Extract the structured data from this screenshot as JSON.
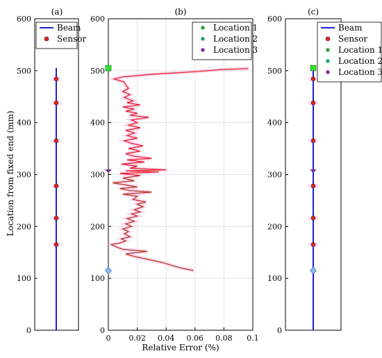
{
  "chart_data": [
    {
      "panel": "(a)",
      "type": "line",
      "title": "(a)",
      "ylabel": "Location from fixed end (mm)",
      "ylim": [
        0,
        600
      ],
      "yticks": [
        0,
        100,
        200,
        300,
        400,
        500,
        600
      ],
      "grid": false,
      "legend_position": "top-right",
      "series": [
        {
          "name": "Beam",
          "color": "#1f1fd8",
          "style": "line",
          "y": [
            0,
            505
          ]
        },
        {
          "name": "Sensor",
          "color": "#d62728",
          "style": "marker",
          "y": [
            484,
            438,
            365,
            278,
            216,
            165
          ]
        }
      ]
    },
    {
      "panel": "(b)",
      "type": "line",
      "title": "(b)",
      "xlabel": "Relative Error (%)",
      "xlim": [
        0,
        0.1
      ],
      "xticks": [
        "0",
        "0.02",
        "0.04",
        "0.06",
        "0.08",
        "0.1"
      ],
      "xtick_values": [
        0,
        0.02,
        0.04,
        0.06,
        0.08,
        0.1
      ],
      "ylim": [
        0,
        600
      ],
      "yticks": [
        0,
        100,
        200,
        300,
        400,
        500,
        600
      ],
      "grid": true,
      "legend_position": "top-right",
      "series": [
        {
          "name": "Relative error",
          "color": "#e8141c",
          "style": "line",
          "points": [
            [
              0.059,
              115
            ],
            [
              0.05,
              120
            ],
            [
              0.045,
              124
            ],
            [
              0.038,
              130
            ],
            [
              0.03,
              135
            ],
            [
              0.025,
              138
            ],
            [
              0.018,
              142
            ],
            [
              0.012,
              147
            ],
            [
              0.02,
              150
            ],
            [
              0.027,
              152
            ],
            [
              0.018,
              154
            ],
            [
              0.01,
              156
            ],
            [
              0.006,
              160
            ],
            [
              0.002,
              165
            ],
            [
              0.008,
              168
            ],
            [
              0.012,
              172
            ],
            [
              0.009,
              176
            ],
            [
              0.015,
              180
            ],
            [
              0.011,
              186
            ],
            [
              0.014,
              190
            ],
            [
              0.01,
              195
            ],
            [
              0.016,
              200
            ],
            [
              0.012,
              205
            ],
            [
              0.018,
              210
            ],
            [
              0.013,
              215
            ],
            [
              0.02,
              220
            ],
            [
              0.016,
              224
            ],
            [
              0.022,
              228
            ],
            [
              0.018,
              232
            ],
            [
              0.024,
              238
            ],
            [
              0.02,
              243
            ],
            [
              0.026,
              247
            ],
            [
              0.017,
              252
            ],
            [
              0.02,
              258
            ],
            [
              0.01,
              262
            ],
            [
              0.03,
              266
            ],
            [
              0.015,
              269
            ],
            [
              0.008,
              273
            ],
            [
              0.02,
              276
            ],
            [
              0.012,
              280
            ],
            [
              0.003,
              284
            ],
            [
              0.018,
              288
            ],
            [
              0.01,
              293
            ],
            [
              0.022,
              298
            ],
            [
              0.008,
              302
            ],
            [
              0.035,
              305
            ],
            [
              0.012,
              307
            ],
            [
              0.04,
              309
            ],
            [
              0.015,
              312
            ],
            [
              0.02,
              316
            ],
            [
              0.009,
              320
            ],
            [
              0.025,
              324
            ],
            [
              0.013,
              328
            ],
            [
              0.03,
              331
            ],
            [
              0.018,
              335
            ],
            [
              0.012,
              340
            ],
            [
              0.022,
              345
            ],
            [
              0.014,
              350
            ],
            [
              0.024,
              355
            ],
            [
              0.016,
              360
            ],
            [
              0.011,
              365
            ],
            [
              0.02,
              370
            ],
            [
              0.013,
              375
            ],
            [
              0.018,
              380
            ],
            [
              0.012,
              385
            ],
            [
              0.022,
              390
            ],
            [
              0.014,
              395
            ],
            [
              0.02,
              400
            ],
            [
              0.016,
              405
            ],
            [
              0.028,
              410
            ],
            [
              0.015,
              414
            ],
            [
              0.02,
              418
            ],
            [
              0.012,
              422
            ],
            [
              0.018,
              426
            ],
            [
              0.01,
              430
            ],
            [
              0.022,
              434
            ],
            [
              0.013,
              438
            ],
            [
              0.017,
              442
            ],
            [
              0.011,
              448
            ],
            [
              0.015,
              454
            ],
            [
              0.01,
              460
            ],
            [
              0.014,
              466
            ],
            [
              0.012,
              472
            ],
            [
              0.011,
              478
            ],
            [
              0.004,
              484
            ],
            [
              0.01,
              488
            ],
            [
              0.03,
              493
            ],
            [
              0.06,
              498
            ],
            [
              0.078,
              502
            ],
            [
              0.097,
              504
            ]
          ]
        },
        {
          "name": "Location 1",
          "color": "#2ca02c",
          "style": "marker",
          "points": [
            [
              0,
              505
            ]
          ]
        },
        {
          "name": "Location 2",
          "color": "#1b9e77",
          "style": "marker",
          "points": [
            [
              0,
              115
            ]
          ]
        },
        {
          "name": "Location 3",
          "color": "#7b2d8e",
          "style": "marker",
          "points": [
            [
              0,
              308
            ]
          ]
        }
      ],
      "legend": [
        "Location 1",
        "Location 2",
        "Location 3"
      ]
    },
    {
      "panel": "(c)",
      "type": "line",
      "title": "(c)",
      "ylim": [
        0,
        600
      ],
      "yticks": [
        0,
        100,
        200,
        300,
        400,
        500,
        600
      ],
      "grid": false,
      "legend_position": "top-right",
      "series": [
        {
          "name": "Beam",
          "color": "#1f1fd8",
          "style": "line",
          "y": [
            0,
            505
          ]
        },
        {
          "name": "Sensor",
          "color": "#d62728",
          "style": "marker",
          "y": [
            484,
            438,
            365,
            278,
            216,
            165
          ]
        },
        {
          "name": "Location 1",
          "color": "#2ca02c",
          "style": "marker",
          "y": [
            505
          ]
        },
        {
          "name": "Location 2",
          "color": "#1b9e77",
          "style": "marker",
          "y": [
            115
          ]
        },
        {
          "name": "Location 3",
          "color": "#7b2d8e",
          "style": "marker",
          "y": [
            308
          ]
        }
      ]
    }
  ]
}
